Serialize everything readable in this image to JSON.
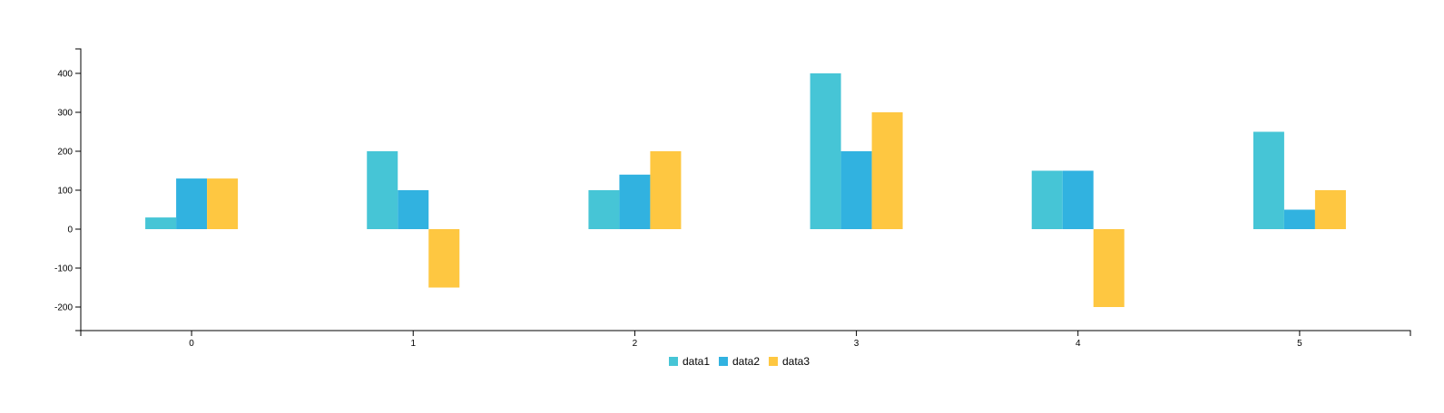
{
  "chart_data": {
    "type": "bar",
    "title": "",
    "xlabel": "",
    "ylabel": "",
    "categories": [
      "0",
      "1",
      "2",
      "3",
      "4",
      "5"
    ],
    "series": [
      {
        "name": "data1",
        "color": "#46c5d6",
        "values": [
          30,
          200,
          100,
          400,
          150,
          250
        ]
      },
      {
        "name": "data2",
        "color": "#31b2e0",
        "values": [
          130,
          100,
          140,
          200,
          150,
          50
        ]
      },
      {
        "name": "data3",
        "color": "#fec741",
        "values": [
          130,
          -150,
          200,
          300,
          -200,
          100
        ]
      }
    ],
    "ylim": [
      -260,
      460
    ],
    "yticks": [
      "-200",
      "-100",
      "0",
      "100",
      "200",
      "300",
      "400"
    ],
    "grid": false,
    "legend_position": "bottom-center"
  }
}
